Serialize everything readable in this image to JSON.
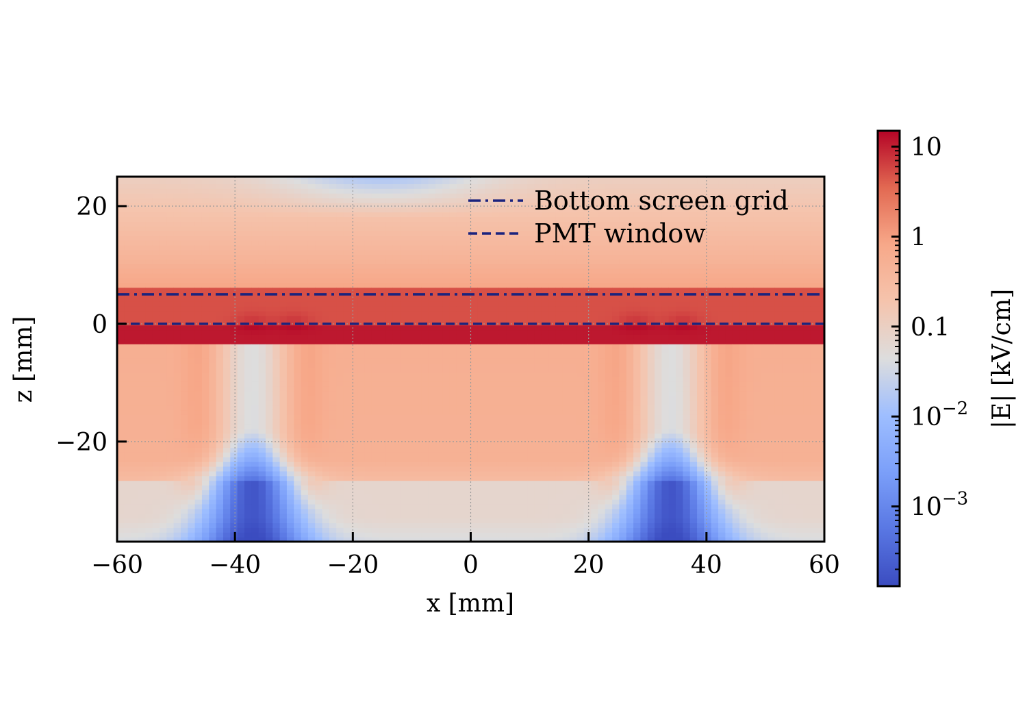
{
  "chart_data": {
    "type": "heatmap",
    "title": "",
    "xlabel": "x [mm]",
    "ylabel": "z [mm]",
    "xlim": [
      -60,
      60
    ],
    "ylim": [
      -37,
      25
    ],
    "x_ticks": [
      -60,
      -40,
      -20,
      0,
      20,
      40,
      60
    ],
    "x_tick_labels": [
      "−60",
      "−40",
      "−20",
      "0",
      "20",
      "40",
      "60"
    ],
    "y_ticks": [
      -20,
      0,
      20
    ],
    "y_tick_labels": [
      "−20",
      "0",
      "20"
    ],
    "grid": true,
    "colormap": "coolwarm",
    "colorbar": {
      "label": "|E| [kV/cm]",
      "scale": "log",
      "range": [
        0.00013,
        15
      ],
      "ticks": [
        {
          "value": 10,
          "base": "10",
          "exp": ""
        },
        {
          "value": 1,
          "base": "1",
          "exp": ""
        },
        {
          "value": 0.1,
          "base": "0.1",
          "exp": ""
        },
        {
          "value": 0.01,
          "base": "10",
          "exp": "−2"
        },
        {
          "value": 0.001,
          "base": "10",
          "exp": "−3"
        }
      ]
    },
    "lines": [
      {
        "name": "Bottom screen grid",
        "z": 5,
        "style": "dash-dot",
        "color": "#1a237e"
      },
      {
        "name": "PMT window",
        "z": 0,
        "style": "dashed",
        "color": "#1a237e"
      }
    ],
    "legend": {
      "position": "top-right"
    },
    "field_regions": {
      "background_above_z10": 0.5,
      "grid_gap_band_z_-3_6": 6,
      "drift_region_z_-27_-3": 0.6,
      "below_z_-27": 0.08,
      "low_field_cones_x": [
        -37,
        34
      ],
      "cone_minimum": 0.0002
    }
  }
}
